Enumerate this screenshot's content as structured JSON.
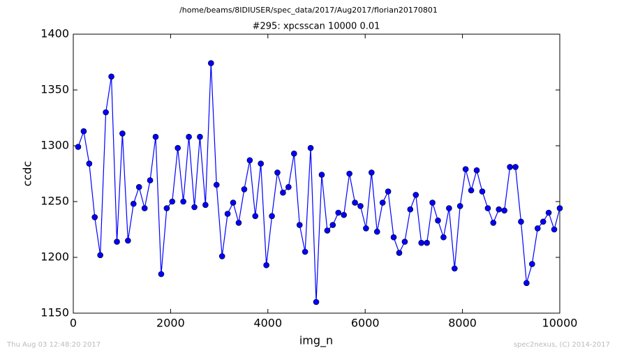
{
  "chart_data": {
    "type": "line",
    "suptitle": "/home/beams/8IDIUSER/spec_data/2017/Aug2017/florian20170801",
    "title": "#295: xpcsscan 10000 0.01",
    "x_label": "img_n",
    "y_label": "ccdc",
    "footer_left": "Thu Aug 03 12:48:20 2017",
    "footer_right": "spec2nexus, (C) 2014-2017",
    "x": [
      100,
      214,
      328,
      441,
      555,
      669,
      783,
      897,
      1010,
      1124,
      1238,
      1352,
      1466,
      1579,
      1693,
      1807,
      1921,
      2034,
      2148,
      2262,
      2376,
      2490,
      2603,
      2717,
      2831,
      2945,
      3059,
      3172,
      3286,
      3400,
      3514,
      3628,
      3741,
      3855,
      3969,
      4083,
      4196,
      4310,
      4424,
      4538,
      4652,
      4765,
      4879,
      4993,
      5107,
      5221,
      5334,
      5448,
      5562,
      5676,
      5790,
      5903,
      6017,
      6131,
      6245,
      6359,
      6472,
      6586,
      6700,
      6814,
      6927,
      7041,
      7155,
      7269,
      7383,
      7496,
      7610,
      7724,
      7838,
      7951,
      8065,
      8179,
      8293,
      8407,
      8521,
      8634,
      8748,
      8862,
      8976,
      9090,
      9203,
      9317,
      9431,
      9545,
      9659,
      9772,
      9886,
      10000
    ],
    "series": [
      {
        "name": "ccdc",
        "color": "#0000ff",
        "values": [
          1299,
          1313,
          1284,
          1236,
          1202,
          1330,
          1362,
          1214,
          1311,
          1215,
          1248,
          1263,
          1244,
          1269,
          1308,
          1185,
          1244,
          1250,
          1298,
          1250,
          1308,
          1245,
          1308,
          1247,
          1374,
          1265,
          1201,
          1239,
          1249,
          1231,
          1261,
          1287,
          1237,
          1284,
          1193,
          1237,
          1276,
          1258,
          1263,
          1293,
          1229,
          1205,
          1298,
          1160,
          1274,
          1224,
          1229,
          1240,
          1238,
          1275,
          1249,
          1246,
          1226,
          1276,
          1223,
          1249,
          1259,
          1218,
          1204,
          1214,
          1243,
          1256,
          1213,
          1213,
          1249,
          1233,
          1218,
          1244,
          1190,
          1246,
          1279,
          1260,
          1278,
          1259,
          1244,
          1231,
          1243,
          1242,
          1281,
          1281,
          1232,
          1177,
          1194,
          1226,
          1232,
          1240,
          1225,
          1244
        ]
      }
    ],
    "xlim": [
      0,
      10000
    ],
    "ylim": [
      1150,
      1400
    ],
    "xticks": [
      0,
      2000,
      4000,
      6000,
      8000,
      10000
    ],
    "yticks": [
      1150,
      1200,
      1250,
      1300,
      1350,
      1400
    ],
    "grid": false
  }
}
